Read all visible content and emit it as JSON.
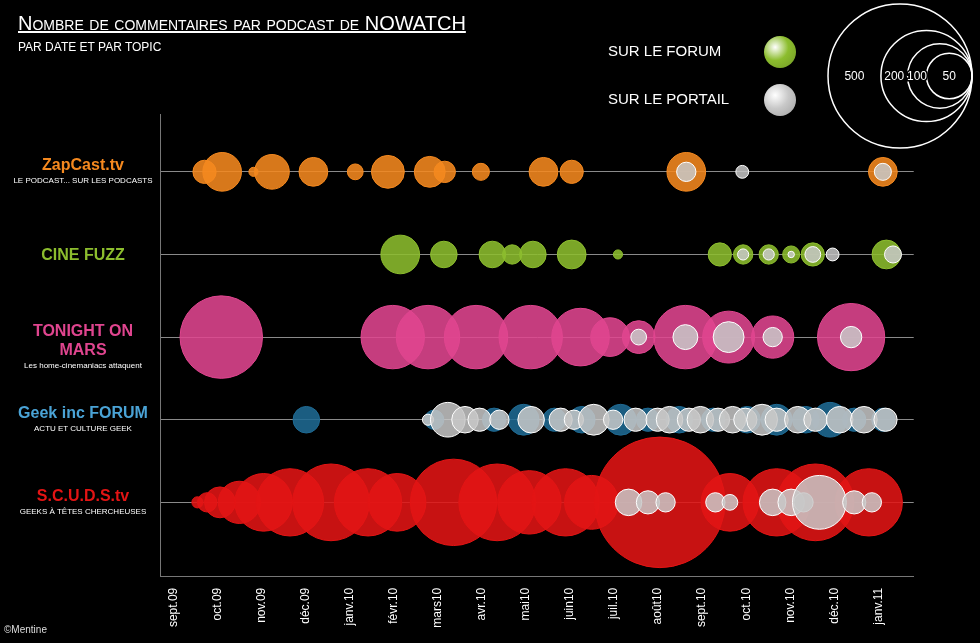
{
  "chart_data": {
    "type": "bubble",
    "title": "Nombre de commentaires par podcast de NOWATCH",
    "subtitle": "PAR DATE ET PAR TOPIC",
    "credit": "©Mentine",
    "legend": "top-right",
    "groups": [
      {
        "name": "SUR LE FORUM",
        "color": "#8cbd2e"
      },
      {
        "name": "SUR LE PORTAIL",
        "color": "#c8c8c8"
      }
    ],
    "size_legend": [
      500,
      200,
      100,
      50
    ],
    "xlim": [
      -0.3,
      16.8
    ],
    "xticks": [
      {
        "value": 0,
        "label": "sept.09"
      },
      {
        "value": 1,
        "label": "oct.09"
      },
      {
        "value": 2,
        "label": "nov.09"
      },
      {
        "value": 3,
        "label": "déc.09"
      },
      {
        "value": 4,
        "label": "janv.10"
      },
      {
        "value": 5,
        "label": "févr.10"
      },
      {
        "value": 6,
        "label": "mars10"
      },
      {
        "value": 7,
        "label": "avr.10"
      },
      {
        "value": 8,
        "label": "mai10"
      },
      {
        "value": 9,
        "label": "juin10"
      },
      {
        "value": 10,
        "label": "juil.10"
      },
      {
        "value": 11,
        "label": "août10"
      },
      {
        "value": 12,
        "label": "sept.10"
      },
      {
        "value": 13,
        "label": "oct.10"
      },
      {
        "value": 14,
        "label": "nov.10"
      },
      {
        "value": 15,
        "label": "déc.10"
      },
      {
        "value": 16,
        "label": "janv.11"
      }
    ],
    "ylim": [
      -0.7,
      4.9
    ],
    "tick_labels": "x",
    "grid": true,
    "series": [
      {
        "name": "ZapCast.tv",
        "tagline": "LE PODCAST... SUR LES PODCASTS",
        "color": "#f5891f",
        "forum": {
          "x": [
            0.71,
            1.11,
            1.82,
            2.24,
            3.18,
            4.13,
            4.87,
            5.82,
            6.16,
            6.98,
            8.4,
            9.04,
            11.64,
            16.1
          ],
          "sizes": [
            13,
            36,
            2,
            29,
            20,
            6,
            26,
            23,
            11,
            7,
            20,
            13,
            36,
            20
          ]
        },
        "portal": {
          "x": [
            11.64,
            12.91,
            16.1
          ],
          "sizes": [
            9,
            4,
            7
          ]
        }
      },
      {
        "name": "CINE FUZZ",
        "tagline": "",
        "color": "#8cbd2e",
        "forum": {
          "x": [
            5.15,
            6.14,
            7.24,
            7.69,
            8.16,
            9.04,
            10.09,
            12.4,
            12.93,
            13.51,
            14.02,
            14.51,
            16.18
          ],
          "sizes": [
            36,
            17,
            17,
            9,
            17,
            20,
            2,
            13,
            9,
            9,
            7,
            13,
            20
          ]
        },
        "portal": {
          "x": [
            12.93,
            13.51,
            14.02,
            14.51,
            14.96,
            16.33
          ],
          "sizes": [
            3,
            3,
            1,
            6,
            4,
            7
          ]
        }
      },
      {
        "name": "TONIGHT ON MARS",
        "tagline": "Les home-cinemaniacs attaquent",
        "color": "#e0458f",
        "forum": {
          "x": [
            1.09,
            4.98,
            5.78,
            6.87,
            8.11,
            9.24,
            9.91,
            10.56,
            11.62,
            12.6,
            13.6,
            15.38
          ],
          "sizes": [
            164,
            97,
            97,
            97,
            97,
            80,
            36,
            26,
            97,
            65,
            43,
            109
          ]
        },
        "portal": {
          "x": [
            10.56,
            11.62,
            12.6,
            13.6,
            15.38
          ],
          "sizes": [
            6,
            15,
            23,
            9,
            11
          ]
        }
      },
      {
        "name": "Geek inc FORUM",
        "tagline": "ACTU ET CULTURE GEEK",
        "color": "#1f6a93",
        "forum": {
          "x": [
            3.02,
            5.92,
            7.28,
            7.95,
            8.65,
            9.27,
            10.15,
            10.77,
            11.48,
            12.25,
            13.02,
            13.69,
            14.35,
            14.9,
            15.45,
            16.11
          ],
          "sizes": [
            17,
            9,
            13,
            23,
            13,
            17,
            23,
            13,
            17,
            13,
            17,
            23,
            17,
            29,
            13,
            13
          ]
        },
        "portal": {
          "x": [
            5.78,
            6.23,
            6.62,
            6.95,
            7.4,
            8.12,
            8.79,
            9.09,
            9.54,
            9.98,
            10.49,
            10.99,
            11.26,
            11.7,
            11.96,
            12.36,
            12.69,
            12.98,
            13.36,
            13.69,
            14.17,
            14.57,
            15.12,
            15.67,
            16.16
          ],
          "sizes": [
            3,
            29,
            17,
            13,
            9,
            17,
            13,
            9,
            23,
            9,
            13,
            13,
            17,
            13,
            17,
            13,
            17,
            13,
            23,
            13,
            17,
            13,
            17,
            17,
            13
          ]
        }
      },
      {
        "name": "S.C.U.D.S.tv",
        "tagline": "GEEKS À TÊTES CHERCHEUSES",
        "color": "#e31414",
        "forum": {
          "x": [
            0.55,
            0.77,
            1.06,
            1.5,
            2.05,
            2.65,
            3.58,
            4.42,
            5.08,
            6.36,
            7.35,
            8.08,
            8.9,
            9.49,
            11.04,
            12.63,
            13.69,
            14.57,
            15.78
          ],
          "sizes": [
            3,
            9,
            23,
            43,
            80,
            109,
            142,
            109,
            80,
            180,
            142,
            97,
            109,
            70,
            411,
            80,
            109,
            142,
            109
          ]
        },
        "portal": {
          "x": [
            10.33,
            10.77,
            11.17,
            12.3,
            12.63,
            13.6,
            14.02,
            14.3,
            14.66,
            15.45,
            15.85
          ],
          "sizes": [
            17,
            13,
            9,
            9,
            6,
            17,
            17,
            9,
            70,
            13,
            9
          ]
        }
      }
    ]
  }
}
